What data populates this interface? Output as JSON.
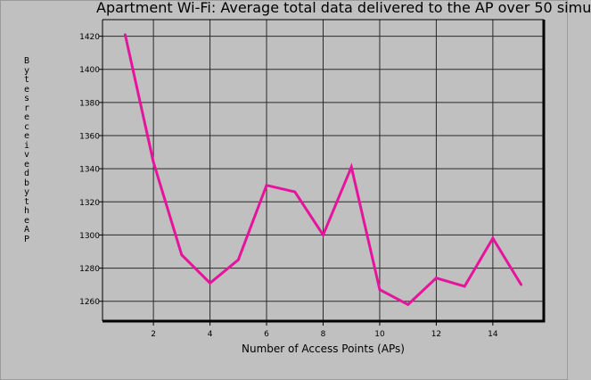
{
  "chart_data": {
    "type": "line",
    "title": "Apartment Wi-Fi: Average total data delivered to the AP over 50 simu",
    "xlabel": "Number of Access Points (APs)",
    "ylabel": "Bytes received by the AP",
    "xlim": [
      0.2,
      15.8
    ],
    "ylim": [
      1248,
      1430
    ],
    "xticks": [
      2,
      4,
      6,
      8,
      10,
      12,
      14
    ],
    "yticks": [
      1260,
      1280,
      1300,
      1320,
      1340,
      1360,
      1380,
      1400,
      1420
    ],
    "grid": true,
    "series": [
      {
        "color": "#e6149c",
        "x": [
          1,
          2,
          3,
          4,
          5,
          6,
          7,
          8,
          9,
          10,
          11,
          12,
          13,
          14,
          15
        ],
        "y": [
          1421,
          1344,
          1288,
          1271,
          1285,
          1330,
          1326,
          1300,
          1341,
          1267,
          1258,
          1274,
          1269,
          1298,
          1270
        ]
      }
    ]
  }
}
